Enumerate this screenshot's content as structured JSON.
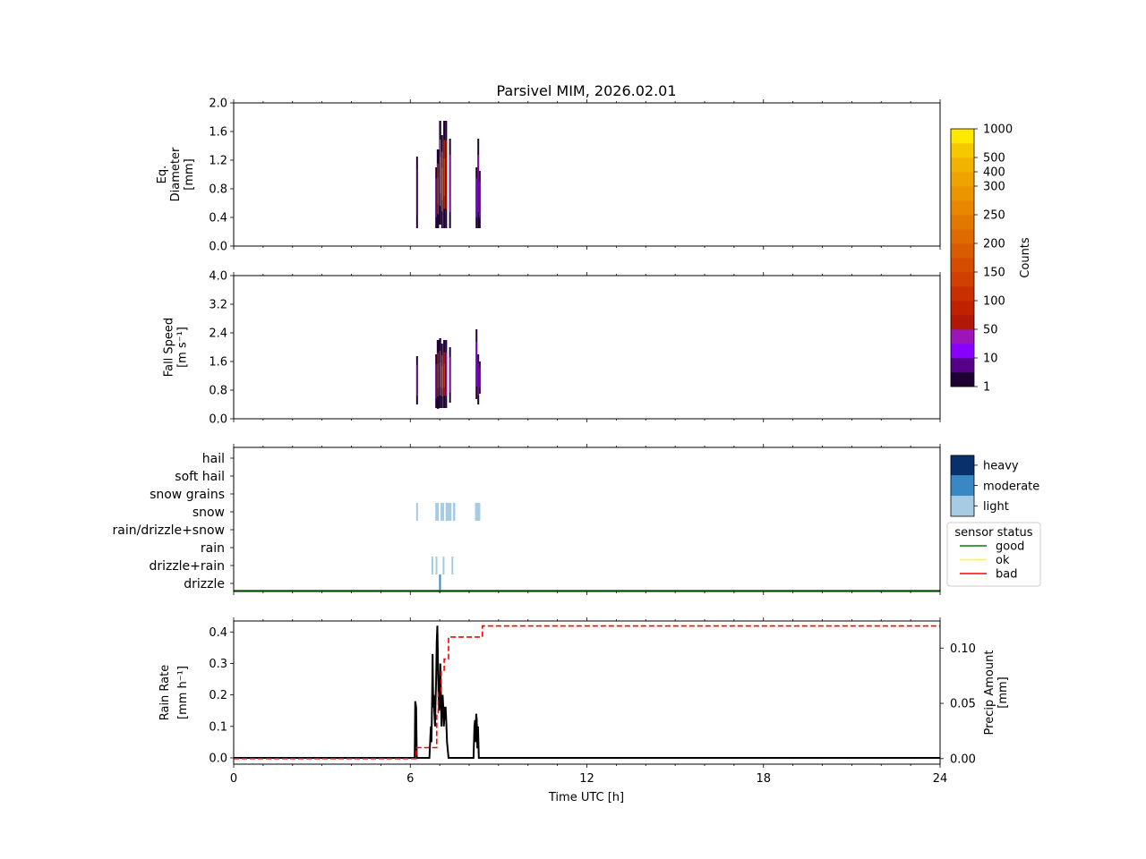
{
  "chart_data": {
    "type": "multi-panel",
    "title": "Parsivel MIM, 2026.02.01",
    "xlabel": "Time UTC [h]",
    "xlim": [
      0,
      24
    ],
    "xticks": [
      "0",
      "6",
      "12",
      "18",
      "24"
    ],
    "panels": {
      "diameter": {
        "type": "heatmap",
        "ylabel": [
          "Eq.",
          "Diameter",
          "[mm]"
        ],
        "ylim": [
          0,
          2.0
        ],
        "yticks": [
          "0.0",
          "0.4",
          "0.8",
          "1.2",
          "1.6",
          "2.0"
        ],
        "columns": [
          {
            "t": 6.2,
            "w": 0.03,
            "ymin": 0.25,
            "ymax": 1.25,
            "level": 0
          },
          {
            "t": 6.85,
            "w": 0.05,
            "ymin": 0.25,
            "ymax": 1.1,
            "level": 1
          },
          {
            "t": 6.9,
            "w": 0.08,
            "ymin": 0.25,
            "ymax": 1.35,
            "level": 5
          },
          {
            "t": 6.98,
            "w": 0.07,
            "ymin": 0.3,
            "ymax": 1.75,
            "level": 7
          },
          {
            "t": 7.05,
            "w": 0.06,
            "ymin": 0.25,
            "ymax": 1.55,
            "level": 6
          },
          {
            "t": 7.12,
            "w": 0.07,
            "ymin": 0.25,
            "ymax": 1.75,
            "level": 5
          },
          {
            "t": 7.19,
            "w": 0.05,
            "ymin": 0.25,
            "ymax": 1.75,
            "level": 3
          },
          {
            "t": 7.32,
            "w": 0.05,
            "ymin": 0.25,
            "ymax": 1.5,
            "level": 2
          },
          {
            "t": 8.22,
            "w": 0.04,
            "ymin": 0.25,
            "ymax": 1.1,
            "level": 1
          },
          {
            "t": 8.28,
            "w": 0.04,
            "ymin": 0.25,
            "ymax": 1.5,
            "level": 2
          },
          {
            "t": 8.33,
            "w": 0.04,
            "ymin": 0.25,
            "ymax": 1.05,
            "level": 1
          }
        ]
      },
      "fallspeed": {
        "type": "heatmap",
        "ylabel": [
          "Fall Speed",
          "[m s⁻¹]"
        ],
        "ylim": [
          0,
          4.0
        ],
        "yticks": [
          "0.0",
          "0.8",
          "1.6",
          "2.4",
          "3.2",
          "4.0"
        ],
        "columns": [
          {
            "t": 6.2,
            "w": 0.03,
            "ymin": 0.4,
            "ymax": 1.75,
            "level": 1
          },
          {
            "t": 6.85,
            "w": 0.05,
            "ymin": 0.3,
            "ymax": 1.8,
            "level": 1
          },
          {
            "t": 6.9,
            "w": 0.08,
            "ymin": 0.28,
            "ymax": 2.2,
            "level": 4
          },
          {
            "t": 6.98,
            "w": 0.07,
            "ymin": 0.3,
            "ymax": 2.25,
            "level": 5
          },
          {
            "t": 7.05,
            "w": 0.06,
            "ymin": 0.3,
            "ymax": 2.1,
            "level": 5
          },
          {
            "t": 7.12,
            "w": 0.07,
            "ymin": 0.3,
            "ymax": 2.2,
            "level": 4
          },
          {
            "t": 7.19,
            "w": 0.05,
            "ymin": 0.3,
            "ymax": 2.2,
            "level": 2
          },
          {
            "t": 7.32,
            "w": 0.05,
            "ymin": 0.45,
            "ymax": 2.0,
            "level": 2
          },
          {
            "t": 8.22,
            "w": 0.04,
            "ymin": 0.55,
            "ymax": 2.5,
            "level": 1
          },
          {
            "t": 8.28,
            "w": 0.04,
            "ymin": 0.4,
            "ymax": 1.8,
            "level": 2
          },
          {
            "t": 8.33,
            "w": 0.04,
            "ymin": 0.7,
            "ymax": 1.6,
            "level": 1
          }
        ]
      },
      "precip_type": {
        "type": "category-timeline",
        "categories": [
          "drizzle",
          "drizzle+rain",
          "rain",
          "rain/drizzle+snow",
          "snow",
          "snow grains",
          "soft hail",
          "hail"
        ],
        "intensity_labels": [
          "light",
          "moderate",
          "heavy"
        ],
        "intensity_colors": [
          "#a6cbe3",
          "#3a88c3",
          "#08306b"
        ],
        "events": [
          {
            "cat": 4,
            "t": 6.2,
            "w": 0.06,
            "intensity": 0
          },
          {
            "cat": 4,
            "t": 6.85,
            "w": 0.12,
            "intensity": 0
          },
          {
            "cat": 4,
            "t": 7.03,
            "w": 0.12,
            "intensity": 0
          },
          {
            "cat": 4,
            "t": 7.2,
            "w": 0.2,
            "intensity": 0
          },
          {
            "cat": 4,
            "t": 7.45,
            "w": 0.08,
            "intensity": 0
          },
          {
            "cat": 4,
            "t": 8.2,
            "w": 0.18,
            "intensity": 0
          },
          {
            "cat": 1,
            "t": 6.72,
            "w": 0.06,
            "intensity": 0
          },
          {
            "cat": 1,
            "t": 6.86,
            "w": 0.06,
            "intensity": 0
          },
          {
            "cat": 1,
            "t": 7.1,
            "w": 0.06,
            "intensity": 0
          },
          {
            "cat": 1,
            "t": 7.4,
            "w": 0.05,
            "intensity": 0
          },
          {
            "cat": 0,
            "t": 6.98,
            "w": 0.05,
            "intensity": 1
          }
        ],
        "sensor_status": {
          "title": "sensor status",
          "entries": [
            {
              "label": "good",
              "color": "#008000"
            },
            {
              "label": "ok",
              "color": "#ffff00"
            },
            {
              "label": "bad",
              "color": "#ff0000"
            }
          ],
          "value": "good"
        }
      },
      "rain": {
        "type": "line",
        "ylabel": [
          "Rain Rate",
          "[mm h⁻¹]"
        ],
        "ylim": [
          -0.02,
          0.435
        ],
        "yticks": [
          "0.0",
          "0.1",
          "0.2",
          "0.3",
          "0.4"
        ],
        "y2label": [
          "Precip Amount",
          "[mm]"
        ],
        "y2lim": [
          -0.005,
          0.1245
        ],
        "y2ticks": [
          "0.00",
          "0.05",
          "0.10"
        ],
        "rain_rate": [
          [
            0,
            0
          ],
          [
            6.15,
            0
          ],
          [
            6.17,
            0.18
          ],
          [
            6.2,
            0.16
          ],
          [
            6.22,
            0
          ],
          [
            6.65,
            0
          ],
          [
            6.68,
            0.06
          ],
          [
            6.7,
            0.1
          ],
          [
            6.72,
            0.05
          ],
          [
            6.74,
            0.18
          ],
          [
            6.76,
            0.33
          ],
          [
            6.78,
            0.16
          ],
          [
            6.8,
            0.2
          ],
          [
            6.82,
            0.14
          ],
          [
            6.84,
            0.1
          ],
          [
            6.86,
            0.18
          ],
          [
            6.88,
            0.26
          ],
          [
            6.9,
            0.37
          ],
          [
            6.92,
            0.42
          ],
          [
            6.94,
            0.3
          ],
          [
            6.96,
            0.2
          ],
          [
            6.98,
            0.15
          ],
          [
            7.0,
            0.18
          ],
          [
            7.02,
            0.3
          ],
          [
            7.04,
            0.22
          ],
          [
            7.06,
            0.1
          ],
          [
            7.08,
            0.18
          ],
          [
            7.1,
            0.2
          ],
          [
            7.12,
            0.16
          ],
          [
            7.14,
            0.1
          ],
          [
            7.16,
            0.13
          ],
          [
            7.18,
            0.16
          ],
          [
            7.2,
            0.16
          ],
          [
            7.22,
            0.12
          ],
          [
            7.25,
            0.05
          ],
          [
            7.3,
            0
          ],
          [
            8.15,
            0
          ],
          [
            8.18,
            0.1
          ],
          [
            8.2,
            0.12
          ],
          [
            8.22,
            0.05
          ],
          [
            8.24,
            0.14
          ],
          [
            8.26,
            0.12
          ],
          [
            8.28,
            0.03
          ],
          [
            8.3,
            0.1
          ],
          [
            8.33,
            0
          ],
          [
            24,
            0
          ]
        ],
        "precip_amount": [
          [
            0,
            0
          ],
          [
            6.2,
            0
          ],
          [
            6.2,
            0.01
          ],
          [
            6.9,
            0.01
          ],
          [
            6.9,
            0.04
          ],
          [
            6.95,
            0.04
          ],
          [
            6.95,
            0.06
          ],
          [
            7.05,
            0.06
          ],
          [
            7.05,
            0.08
          ],
          [
            7.15,
            0.08
          ],
          [
            7.15,
            0.09
          ],
          [
            7.3,
            0.09
          ],
          [
            7.3,
            0.11
          ],
          [
            8.45,
            0.11
          ],
          [
            8.45,
            0.12
          ],
          [
            24,
            0.12
          ]
        ]
      }
    },
    "colorbar": {
      "label": "Counts",
      "ticks": [
        "1",
        "10",
        "50",
        "100",
        "150",
        "200",
        "250",
        "300",
        "400",
        "500",
        "1000"
      ],
      "colors": [
        "#1e0033",
        "#560088",
        "#8a00ff",
        "#9b15b8",
        "#b11808",
        "#c02200",
        "#c93000",
        "#d04000",
        "#d54e00",
        "#da5c00",
        "#df6a00",
        "#e37800",
        "#e78800",
        "#eb9600",
        "#eea400",
        "#f1b200",
        "#f5c800",
        "#ffe800"
      ],
      "tick_color_index": [
        0,
        2,
        4,
        6,
        8,
        10,
        12,
        14,
        15,
        16,
        18
      ]
    }
  }
}
